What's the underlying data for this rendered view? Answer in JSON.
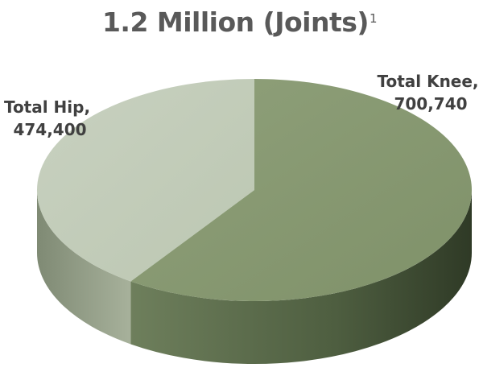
{
  "title": {
    "main": "1.2 Million (Joints)",
    "footnote": "1"
  },
  "chart_data": {
    "type": "pie",
    "style": "3d",
    "categories": [
      "Total Knee",
      "Total Hip"
    ],
    "values": [
      700740,
      474400
    ],
    "labels": [
      {
        "name": "Total Knee,",
        "value": "700,740"
      },
      {
        "name": "Total Hip,",
        "value": "474,400"
      }
    ],
    "colors": {
      "knee_top": "#8c9e78",
      "knee_side": "#4a5a3c",
      "hip_top": "#c4cebc",
      "hip_side": "#98a38c"
    },
    "legend": "none"
  }
}
